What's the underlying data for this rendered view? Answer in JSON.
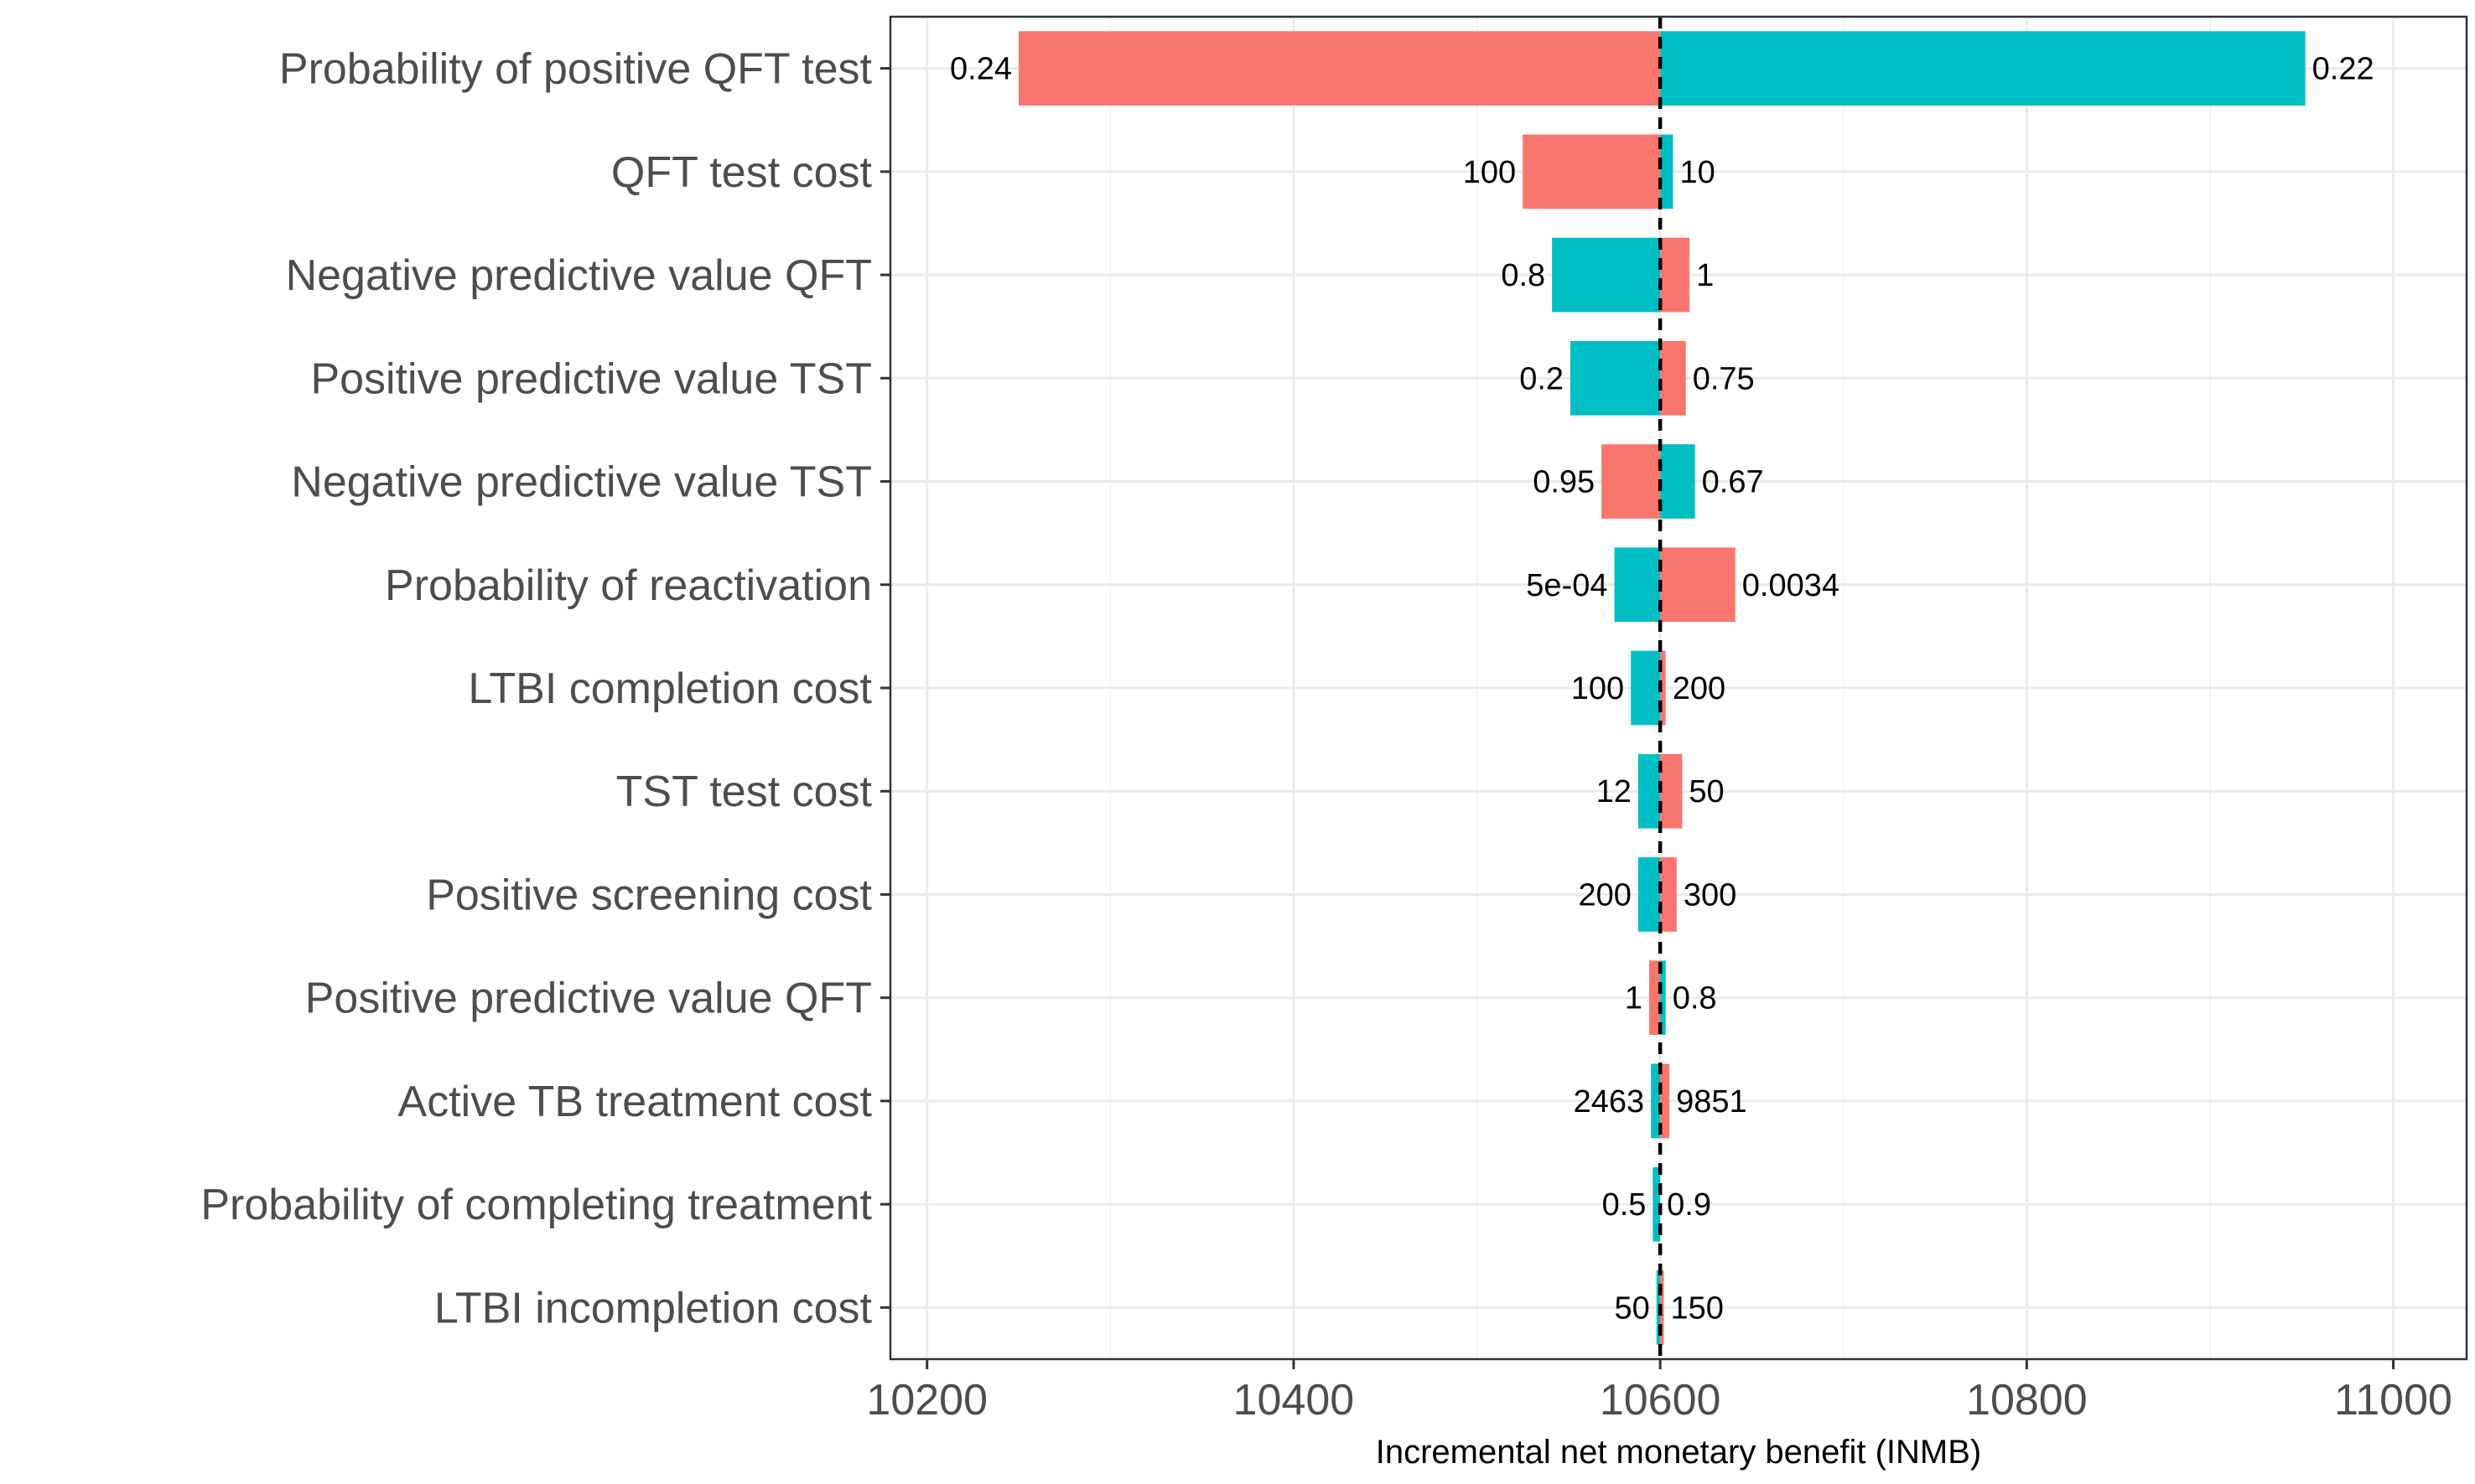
{
  "chart_data": {
    "type": "bar",
    "orientation": "horizontal",
    "subtype": "tornado",
    "title": "",
    "xlabel": "Incremental net monetary benefit (INMB)",
    "ylabel": "",
    "xlim": [
      10180,
      11040
    ],
    "x_ticks": [
      10200,
      10400,
      10600,
      10800,
      11000
    ],
    "baseline": 10600,
    "grid": true,
    "legend": "none",
    "colors": {
      "red": "#F8766D",
      "teal": "#00BFC4"
    },
    "categories": [
      "Probability of positive QFT test",
      "QFT test cost",
      "Negative predictive value QFT",
      "Positive predictive value TST",
      "Negative predictive value TST",
      "Probability of reactivation",
      "LTBI completion cost",
      "TST test cost",
      "Positive screening cost",
      "Positive predictive value QFT",
      "Active TB treatment cost",
      "Probability of completing treatment",
      "LTBI incompletion cost"
    ],
    "bars": [
      {
        "left_value": 10250,
        "right_value": 10952,
        "left_color": "red",
        "right_color": "teal",
        "left_label": "0.24",
        "right_label": "0.22"
      },
      {
        "left_value": 10525,
        "right_value": 10607,
        "left_color": "red",
        "right_color": "teal",
        "left_label": "100",
        "right_label": "10"
      },
      {
        "left_value": 10541,
        "right_value": 10616,
        "left_color": "teal",
        "right_color": "red",
        "left_label": "0.8",
        "right_label": "1"
      },
      {
        "left_value": 10551,
        "right_value": 10614,
        "left_color": "teal",
        "right_color": "red",
        "left_label": "0.2",
        "right_label": "0.75"
      },
      {
        "left_value": 10568,
        "right_value": 10619,
        "left_color": "red",
        "right_color": "teal",
        "left_label": "0.95",
        "right_label": "0.67"
      },
      {
        "left_value": 10575,
        "right_value": 10641,
        "left_color": "teal",
        "right_color": "red",
        "left_label": "5e-04",
        "right_label": "0.0034"
      },
      {
        "left_value": 10584,
        "right_value": 10603,
        "left_color": "teal",
        "right_color": "red",
        "left_label": "100",
        "right_label": "200"
      },
      {
        "left_value": 10588,
        "right_value": 10612,
        "left_color": "teal",
        "right_color": "red",
        "left_label": "12",
        "right_label": "50"
      },
      {
        "left_value": 10588,
        "right_value": 10609,
        "left_color": "teal",
        "right_color": "red",
        "left_label": "200",
        "right_label": "300"
      },
      {
        "left_value": 10594,
        "right_value": 10603,
        "left_color": "red",
        "right_color": "teal",
        "left_label": "1",
        "right_label": "0.8"
      },
      {
        "left_value": 10595,
        "right_value": 10605,
        "left_color": "teal",
        "right_color": "red",
        "left_label": "2463",
        "right_label": "9851"
      },
      {
        "left_value": 10596,
        "right_value": 10600,
        "left_color": "teal",
        "right_color": "red",
        "left_label": "0.5",
        "right_label": "0.9"
      },
      {
        "left_value": 10598,
        "right_value": 10602,
        "left_color": "teal",
        "right_color": "red",
        "left_label": "50",
        "right_label": "150"
      }
    ]
  }
}
